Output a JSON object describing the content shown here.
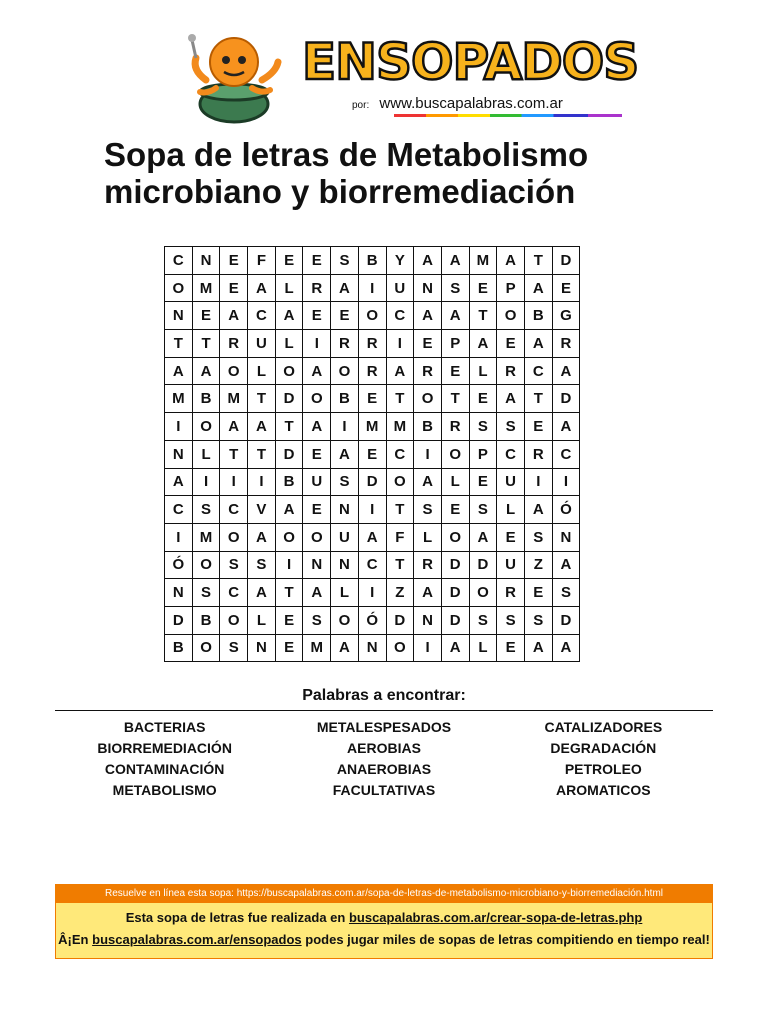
{
  "header": {
    "brand": "ENSOPADOS",
    "by_prefix": "por:",
    "by_site": "www.buscapalabras.com.ar"
  },
  "title": {
    "line1": "Sopa de letras de Metabolismo",
    "line2": "microbiano y biorremediación"
  },
  "grid": [
    [
      "C",
      "N",
      "E",
      "F",
      "E",
      "E",
      "S",
      "B",
      "Y",
      "A",
      "A",
      "M",
      "A",
      "T",
      "D"
    ],
    [
      "O",
      "M",
      "E",
      "A",
      "L",
      "R",
      "A",
      "I",
      "U",
      "N",
      "S",
      "E",
      "P",
      "A",
      "E"
    ],
    [
      "N",
      "E",
      "A",
      "C",
      "A",
      "E",
      "E",
      "O",
      "C",
      "A",
      "A",
      "T",
      "O",
      "B",
      "G"
    ],
    [
      "T",
      "T",
      "R",
      "U",
      "L",
      "I",
      "R",
      "R",
      "I",
      "E",
      "P",
      "A",
      "E",
      "A",
      "R"
    ],
    [
      "A",
      "A",
      "O",
      "L",
      "O",
      "A",
      "O",
      "R",
      "A",
      "R",
      "E",
      "L",
      "R",
      "C",
      "A"
    ],
    [
      "M",
      "B",
      "M",
      "T",
      "D",
      "O",
      "B",
      "E",
      "T",
      "O",
      "T",
      "E",
      "A",
      "T",
      "D"
    ],
    [
      "I",
      "O",
      "A",
      "A",
      "T",
      "A",
      "I",
      "M",
      "M",
      "B",
      "R",
      "S",
      "S",
      "E",
      "A"
    ],
    [
      "N",
      "L",
      "T",
      "T",
      "D",
      "E",
      "A",
      "E",
      "C",
      "I",
      "O",
      "P",
      "C",
      "R",
      "C"
    ],
    [
      "A",
      "I",
      "I",
      "I",
      "B",
      "U",
      "S",
      "D",
      "O",
      "A",
      "L",
      "E",
      "U",
      "I",
      "I"
    ],
    [
      "C",
      "S",
      "C",
      "V",
      "A",
      "E",
      "N",
      "I",
      "T",
      "S",
      "E",
      "S",
      "L",
      "A",
      "Ó"
    ],
    [
      "I",
      "M",
      "O",
      "A",
      "O",
      "O",
      "U",
      "A",
      "F",
      "L",
      "O",
      "A",
      "E",
      "S",
      "N"
    ],
    [
      "Ó",
      "O",
      "S",
      "S",
      "I",
      "N",
      "N",
      "C",
      "T",
      "R",
      "D",
      "D",
      "U",
      "Z",
      "A"
    ],
    [
      "N",
      "S",
      "C",
      "A",
      "T",
      "A",
      "L",
      "I",
      "Z",
      "A",
      "D",
      "O",
      "R",
      "E",
      "S"
    ],
    [
      "D",
      "B",
      "O",
      "L",
      "E",
      "S",
      "O",
      "Ó",
      "D",
      "N",
      "D",
      "S",
      "S",
      "S",
      "D"
    ],
    [
      "B",
      "O",
      "S",
      "N",
      "E",
      "M",
      "A",
      "N",
      "O",
      "I",
      "A",
      "L",
      "E",
      "A",
      "A"
    ]
  ],
  "words_heading": "Palabras a encontrar:",
  "words": [
    "BACTERIAS",
    "METALESPESADOS",
    "CATALIZADORES",
    "BIORREMEDIACIÓN",
    "AEROBIAS",
    "DEGRADACIÓN",
    "CONTAMINACIÓN",
    "ANAEROBIAS",
    "PETROLEO",
    "METABOLISMO",
    "FACULTATIVAS",
    "AROMATICOS"
  ],
  "footer": {
    "online_text": "Resuelve en línea esta sopa: https://buscapalabras.com.ar/sopa-de-letras-de-metabolismo-microbiano-y-biorremediación.html",
    "made_prefix": "Esta sopa de letras fue realizada en",
    "made_link": "buscapalabras.com.ar/crear-sopa-de-letras.php",
    "play_prefix": "Â¡En",
    "play_link": "buscapalabras.com.ar/ensopados",
    "play_suffix": "podes jugar miles de sopas de letras compitiendo en tiempo real!"
  },
  "colors": {
    "brand_fill": "#f7b21c",
    "footer_orange": "#f07c00",
    "footer_yellow": "#ffe97a"
  }
}
